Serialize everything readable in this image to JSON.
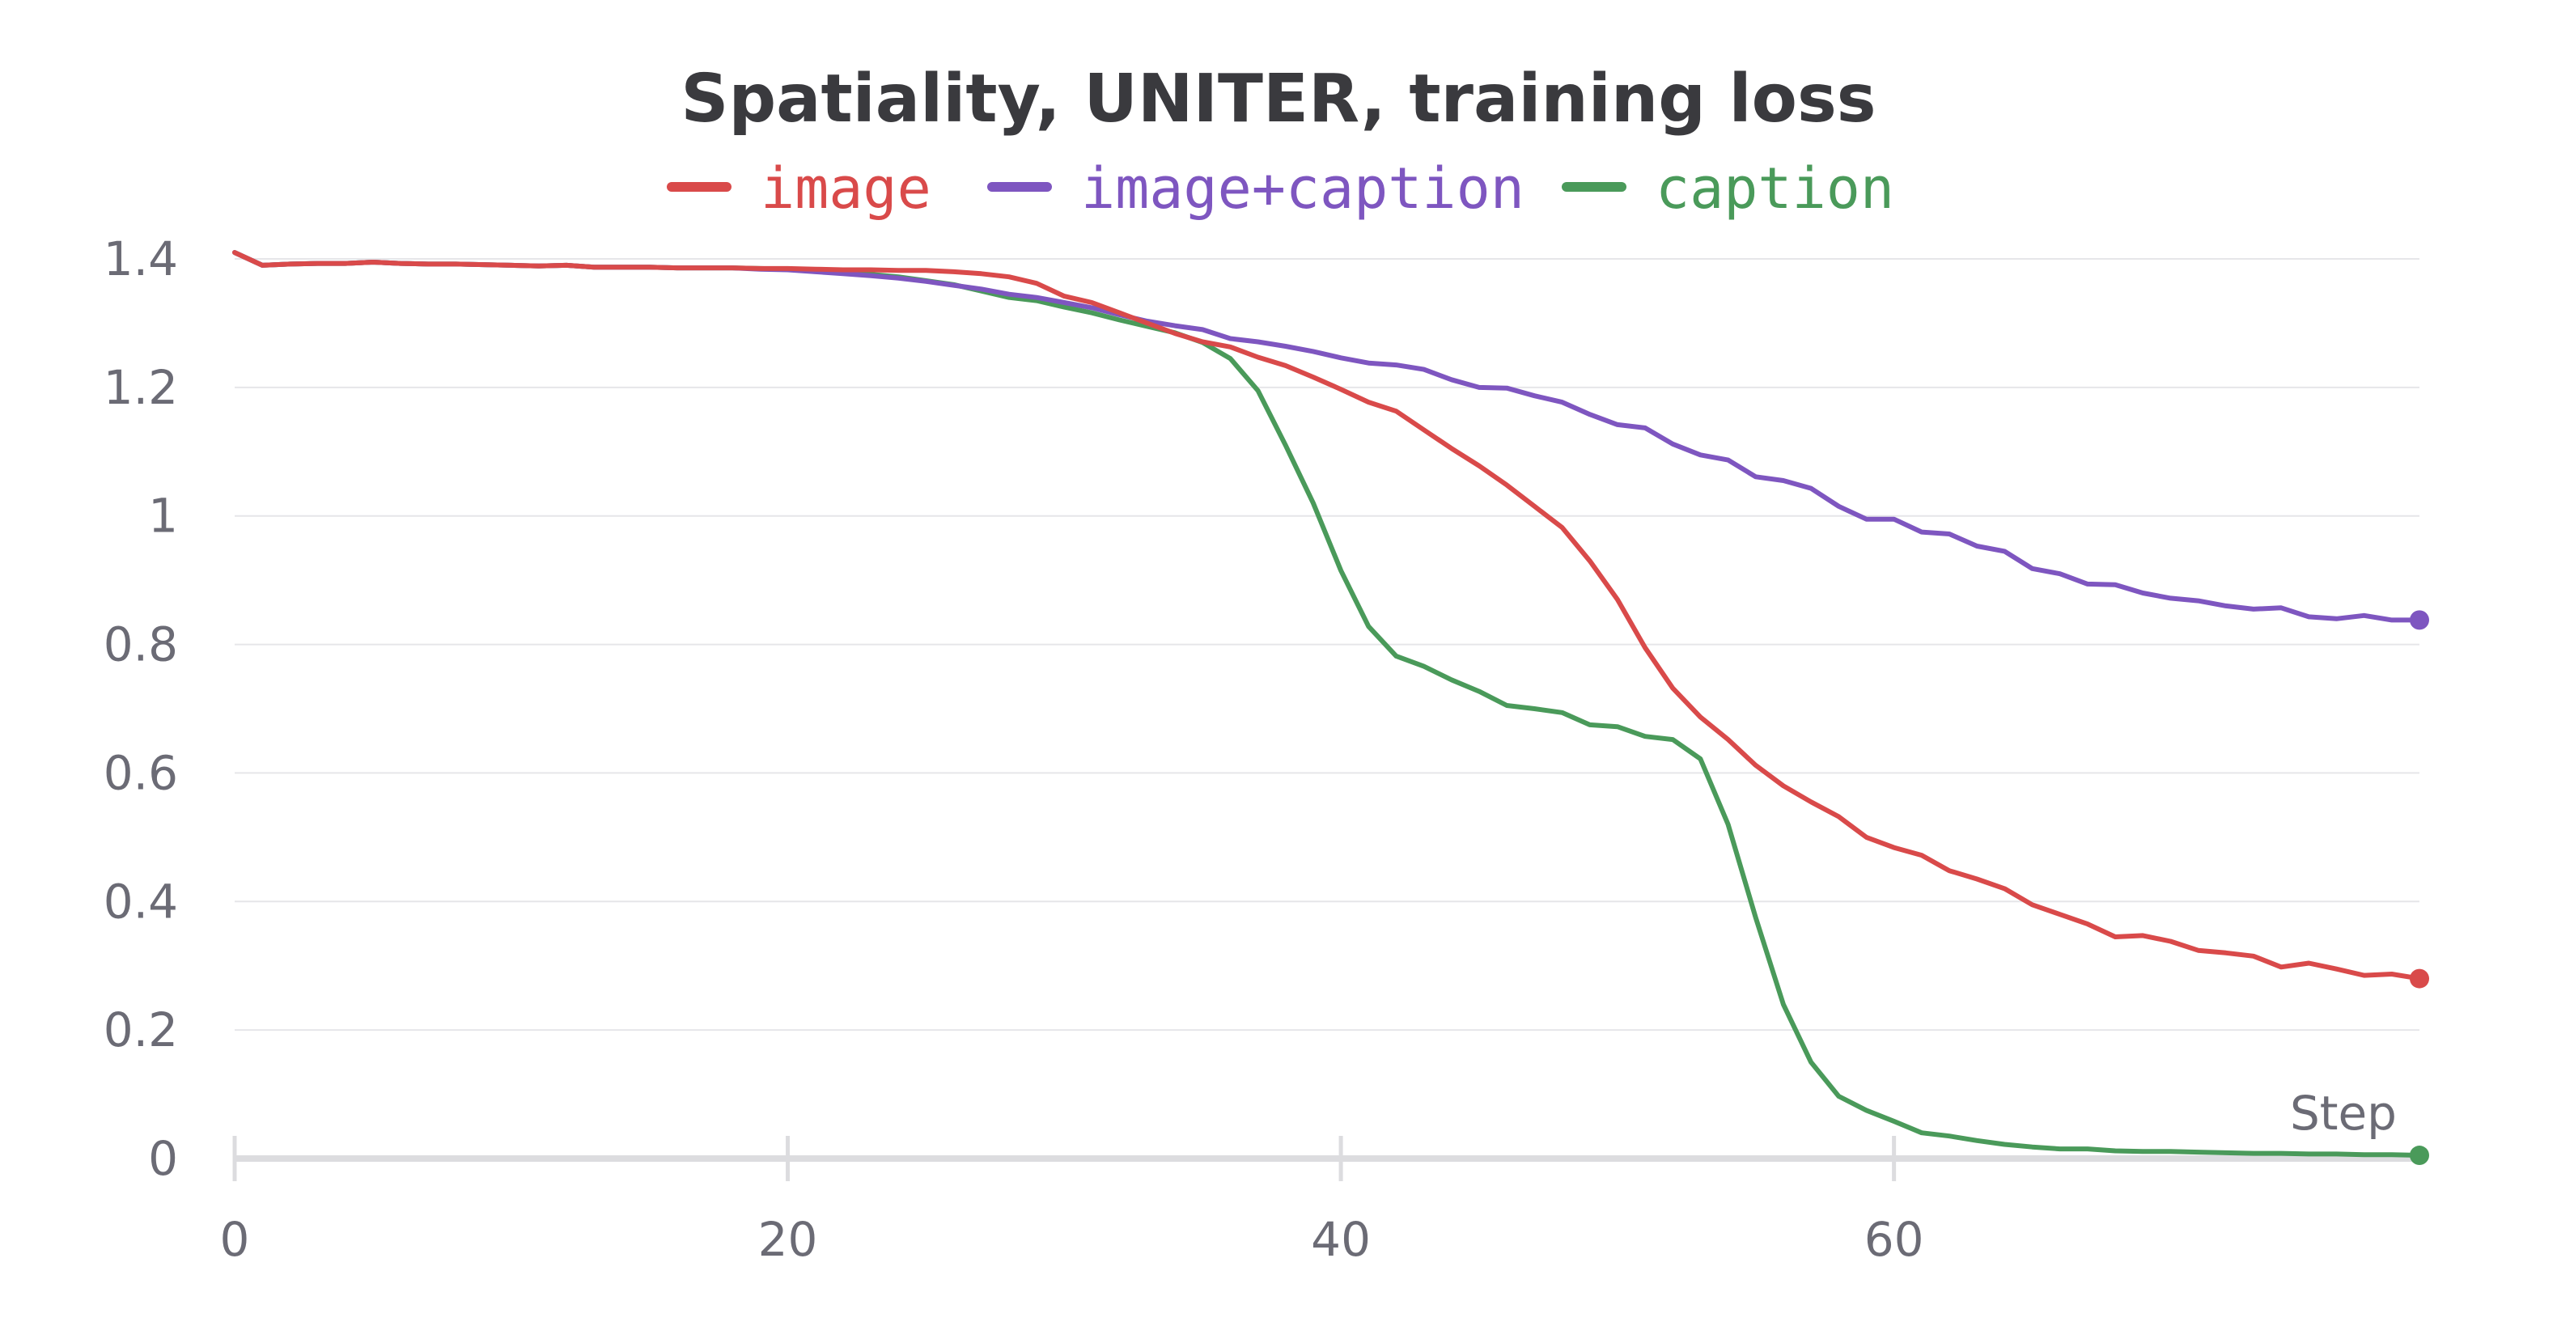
{
  "chart_data": {
    "type": "line",
    "title": "Spatiality, UNITER, training loss",
    "xlabel": "Step",
    "ylabel": "",
    "xlim": [
      0,
      79
    ],
    "ylim": [
      0,
      1.4
    ],
    "x_ticks": [
      0,
      20,
      40,
      60
    ],
    "x_tick_labels": [
      "0",
      "20",
      "40",
      "60"
    ],
    "y_ticks": [
      0,
      0.2,
      0.4,
      0.6,
      0.8,
      1,
      1.2,
      1.4
    ],
    "y_tick_labels": [
      "0",
      "0.2",
      "0.4",
      "0.6",
      "0.8",
      "1",
      "1.2",
      "1.4"
    ],
    "grid": true,
    "legend_position": "top-center",
    "x": [
      0,
      1,
      2,
      3,
      4,
      5,
      6,
      7,
      8,
      9,
      10,
      11,
      12,
      13,
      14,
      15,
      16,
      17,
      18,
      19,
      20,
      21,
      22,
      23,
      24,
      25,
      26,
      27,
      28,
      29,
      30,
      31,
      32,
      33,
      34,
      35,
      36,
      37,
      38,
      39,
      40,
      41,
      42,
      43,
      44,
      45,
      46,
      47,
      48,
      49,
      50,
      51,
      52,
      53,
      54,
      55,
      56,
      57,
      58,
      59,
      60,
      61,
      62,
      63,
      64,
      65,
      66,
      67,
      68,
      69,
      70,
      71,
      72,
      73,
      74,
      75,
      76,
      77,
      78,
      79
    ],
    "series": [
      {
        "name": "image",
        "color": "#d94a4a",
        "values": [
          1.41,
          1.39,
          1.392,
          1.393,
          1.393,
          1.395,
          1.393,
          1.392,
          1.392,
          1.391,
          1.39,
          1.389,
          1.39,
          1.387,
          1.387,
          1.387,
          1.386,
          1.386,
          1.386,
          1.385,
          1.385,
          1.384,
          1.383,
          1.383,
          1.382,
          1.382,
          1.38,
          1.377,
          1.372,
          1.362,
          1.342,
          1.332,
          1.316,
          1.3,
          1.284,
          1.271,
          1.263,
          1.247,
          1.234,
          1.216,
          1.197,
          1.177,
          1.163,
          1.134,
          1.105,
          1.078,
          1.048,
          1.015,
          0.982,
          0.93,
          0.87,
          0.795,
          0.732,
          0.687,
          0.652,
          0.612,
          0.58,
          0.555,
          0.532,
          0.5,
          0.484,
          0.472,
          0.448,
          0.435,
          0.42,
          0.395,
          0.38,
          0.365,
          0.345,
          0.347,
          0.338,
          0.324,
          0.32,
          0.315,
          0.298,
          0.304,
          0.295,
          0.285,
          0.287,
          0.28
        ]
      },
      {
        "name": "image+caption",
        "color": "#7e56c0",
        "values": [
          1.41,
          1.39,
          1.392,
          1.393,
          1.393,
          1.395,
          1.393,
          1.392,
          1.392,
          1.391,
          1.39,
          1.389,
          1.39,
          1.387,
          1.387,
          1.387,
          1.386,
          1.386,
          1.386,
          1.384,
          1.383,
          1.38,
          1.377,
          1.374,
          1.37,
          1.365,
          1.359,
          1.353,
          1.345,
          1.34,
          1.332,
          1.324,
          1.313,
          1.303,
          1.296,
          1.29,
          1.276,
          1.271,
          1.264,
          1.256,
          1.246,
          1.238,
          1.235,
          1.228,
          1.212,
          1.2,
          1.199,
          1.187,
          1.177,
          1.158,
          1.142,
          1.137,
          1.112,
          1.095,
          1.087,
          1.061,
          1.055,
          1.043,
          1.015,
          0.995,
          0.995,
          0.975,
          0.972,
          0.953,
          0.945,
          0.918,
          0.91,
          0.894,
          0.893,
          0.88,
          0.872,
          0.868,
          0.86,
          0.855,
          0.857,
          0.843,
          0.84,
          0.845,
          0.838,
          0.838
        ]
      },
      {
        "name": "caption",
        "color": "#4a9a5a",
        "values": [
          1.41,
          1.39,
          1.392,
          1.393,
          1.393,
          1.395,
          1.393,
          1.392,
          1.392,
          1.391,
          1.39,
          1.389,
          1.39,
          1.387,
          1.387,
          1.387,
          1.386,
          1.386,
          1.386,
          1.385,
          1.384,
          1.382,
          1.38,
          1.376,
          1.372,
          1.366,
          1.36,
          1.35,
          1.34,
          1.335,
          1.325,
          1.316,
          1.305,
          1.295,
          1.285,
          1.27,
          1.245,
          1.195,
          1.11,
          1.02,
          0.915,
          0.828,
          0.782,
          0.766,
          0.745,
          0.727,
          0.705,
          0.7,
          0.694,
          0.675,
          0.672,
          0.657,
          0.652,
          0.622,
          0.52,
          0.375,
          0.24,
          0.15,
          0.097,
          0.075,
          0.058,
          0.04,
          0.035,
          0.028,
          0.022,
          0.018,
          0.015,
          0.015,
          0.012,
          0.011,
          0.011,
          0.01,
          0.009,
          0.008,
          0.008,
          0.007,
          0.007,
          0.006,
          0.006,
          0.005
        ]
      }
    ]
  }
}
